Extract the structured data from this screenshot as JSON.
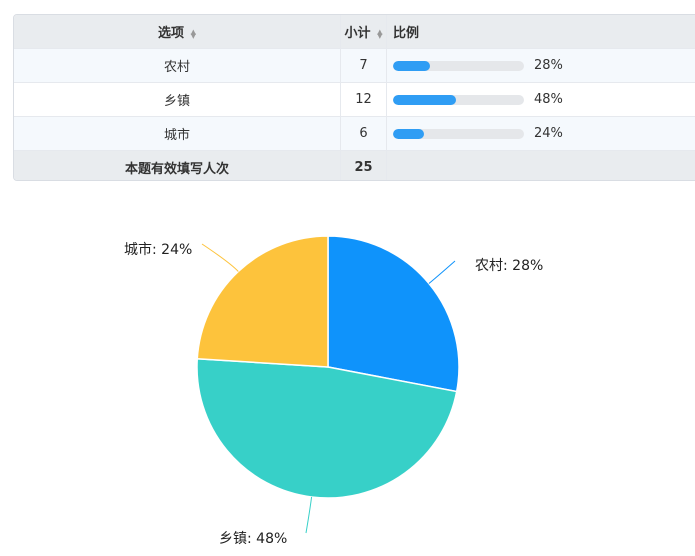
{
  "table": {
    "headers": {
      "option": "选项",
      "count": "小计",
      "ratio": "比例"
    },
    "rows": [
      {
        "option": "农村",
        "count": "7",
        "percent": "28%",
        "ratio": 0.28
      },
      {
        "option": "乡镇",
        "count": "12",
        "percent": "48%",
        "ratio": 0.48
      },
      {
        "option": "城市",
        "count": "6",
        "percent": "24%",
        "ratio": 0.24
      }
    ],
    "footer": {
      "label": "本题有效填写人次",
      "total": "25"
    }
  },
  "chart_data": {
    "type": "pie",
    "categories": [
      "农村",
      "乡镇",
      "城市"
    ],
    "values": [
      28,
      48,
      24
    ],
    "labels": [
      "农村: 28%",
      "乡镇: 48%",
      "城市: 24%"
    ],
    "colors": [
      "#0f93fb",
      "#37d0c8",
      "#fdc33c"
    ]
  }
}
